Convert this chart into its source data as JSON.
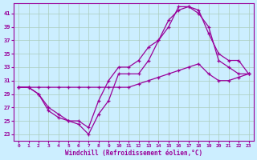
{
  "xlabel": "Windchill (Refroidissement éolien,°C)",
  "background_color": "#cceeff",
  "grid_color": "#aaccbb",
  "line_color": "#990099",
  "xlim": [
    -0.5,
    23.5
  ],
  "ylim": [
    22,
    42.5
  ],
  "xticks": [
    0,
    1,
    2,
    3,
    4,
    5,
    6,
    7,
    8,
    9,
    10,
    11,
    12,
    13,
    14,
    15,
    16,
    17,
    18,
    19,
    20,
    21,
    22,
    23
  ],
  "yticks": [
    23,
    25,
    27,
    29,
    31,
    33,
    35,
    37,
    39,
    41
  ],
  "line1_x": [
    0,
    1,
    2,
    3,
    4,
    5,
    6,
    7,
    8,
    9,
    10,
    11,
    12,
    13,
    14,
    15,
    16,
    17,
    18,
    19,
    20,
    21,
    22,
    23
  ],
  "line1_y": [
    30,
    30,
    29,
    27,
    26,
    25,
    25,
    24,
    28,
    31,
    33,
    33,
    34,
    36,
    37,
    39,
    42,
    42,
    41,
    39,
    34,
    33,
    32,
    32
  ],
  "line2_x": [
    0,
    1,
    2,
    3,
    4,
    5,
    6,
    7,
    8,
    9,
    10,
    11,
    12,
    13,
    14,
    15,
    16,
    17,
    18,
    19,
    20,
    21,
    22,
    23
  ],
  "line2_y": [
    30,
    30,
    30,
    30,
    30,
    30,
    30,
    30,
    30,
    30,
    30,
    30,
    30.5,
    31,
    31.5,
    32,
    32.5,
    33,
    33.5,
    32,
    31,
    31,
    31.5,
    32
  ],
  "line3_x": [
    0,
    1,
    2,
    3,
    4,
    5,
    6,
    7,
    8,
    9,
    10,
    11,
    12,
    13,
    14,
    15,
    16,
    17,
    18,
    19,
    20,
    21,
    22,
    23
  ],
  "line3_y": [
    30,
    30,
    29,
    26.5,
    25.5,
    25,
    24.5,
    23,
    26,
    28,
    32,
    32,
    32,
    34,
    37,
    40,
    41.5,
    42,
    41.5,
    38,
    35,
    34,
    34,
    32
  ]
}
